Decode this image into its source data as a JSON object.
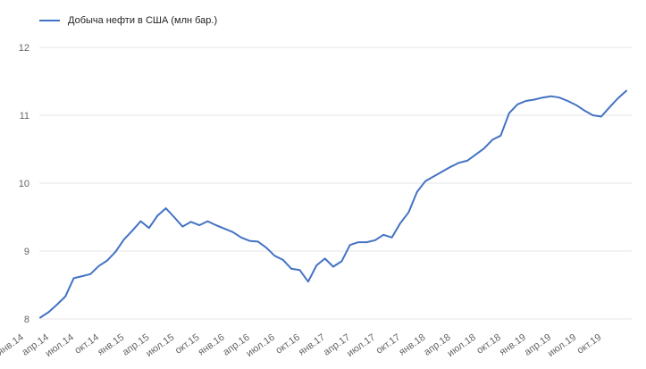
{
  "chart_data": {
    "type": "line",
    "title": "",
    "legend": "Добыча нефти в США (млн бар.)",
    "legend_position": "top-left",
    "categories": [
      "янв.14",
      "фев.14",
      "мар.14",
      "апр.14",
      "май.14",
      "июн.14",
      "июл.14",
      "авг.14",
      "сен.14",
      "окт.14",
      "ноя.14",
      "дек.14",
      "янв.15",
      "фев.15",
      "мар.15",
      "апр.15",
      "май.15",
      "июн.15",
      "июл.15",
      "авг.15",
      "сен.15",
      "окт.15",
      "ноя.15",
      "дек.15",
      "янв.16",
      "фев.16",
      "мар.16",
      "апр.16",
      "май.16",
      "июн.16",
      "июл.16",
      "авг.16",
      "сен.16",
      "окт.16",
      "ноя.16",
      "дек.16",
      "янв.17",
      "фев.17",
      "мар.17",
      "апр.17",
      "май.17",
      "июн.17",
      "июл.17",
      "авг.17",
      "сен.17",
      "окт.17",
      "ноя.17",
      "дек.17",
      "янв.18",
      "фев.18",
      "мар.18",
      "апр.18",
      "май.18",
      "июн.18",
      "июл.18",
      "авг.18",
      "сен.18",
      "окт.18",
      "ноя.18",
      "дек.18",
      "янв.19",
      "фев.19",
      "мар.19",
      "апр.19",
      "май.19",
      "июн.19",
      "июл.19",
      "авг.19",
      "сен.19",
      "окт.19",
      "ноя.19"
    ],
    "values": [
      8.02,
      8.1,
      8.21,
      8.33,
      8.6,
      8.63,
      8.66,
      8.78,
      8.86,
      8.99,
      9.17,
      9.3,
      9.44,
      9.34,
      9.52,
      9.63,
      9.5,
      9.36,
      9.43,
      9.38,
      9.44,
      9.38,
      9.33,
      9.28,
      9.2,
      9.15,
      9.14,
      9.05,
      8.93,
      8.87,
      8.74,
      8.72,
      8.55,
      8.79,
      8.89,
      8.77,
      8.85,
      9.09,
      9.13,
      9.13,
      9.16,
      9.24,
      9.2,
      9.41,
      9.57,
      9.87,
      10.03,
      10.1,
      10.17,
      10.24,
      10.3,
      10.33,
      10.42,
      10.51,
      10.64,
      10.7,
      11.03,
      11.16,
      11.21,
      11.23,
      11.26,
      11.28,
      11.26,
      11.21,
      11.15,
      11.07,
      11.0,
      10.98,
      11.12,
      11.25,
      11.36
    ],
    "x_tick_labels": [
      "янв.14",
      "апр.14",
      "июл.14",
      "окт.14",
      "янв.15",
      "апр.15",
      "июл.15",
      "окт.15",
      "янв.16",
      "апр.16",
      "июл.16",
      "окт.16",
      "янв.17",
      "апр.17",
      "июл.17",
      "окт.17",
      "янв.18",
      "апр.18",
      "июл.18",
      "окт.18",
      "янв.19",
      "апр.19",
      "июл.19",
      "окт.19"
    ],
    "x_tick_every": 3,
    "y_ticks": [
      8,
      9,
      10,
      11,
      12
    ],
    "ylim": [
      8,
      12
    ],
    "grid": "horizontal",
    "line_color": "#4372c4",
    "grid_color": "#e6e6e6",
    "axis_label_color": "#666666",
    "legend_text_color": "#222222",
    "background": "#ffffff"
  }
}
